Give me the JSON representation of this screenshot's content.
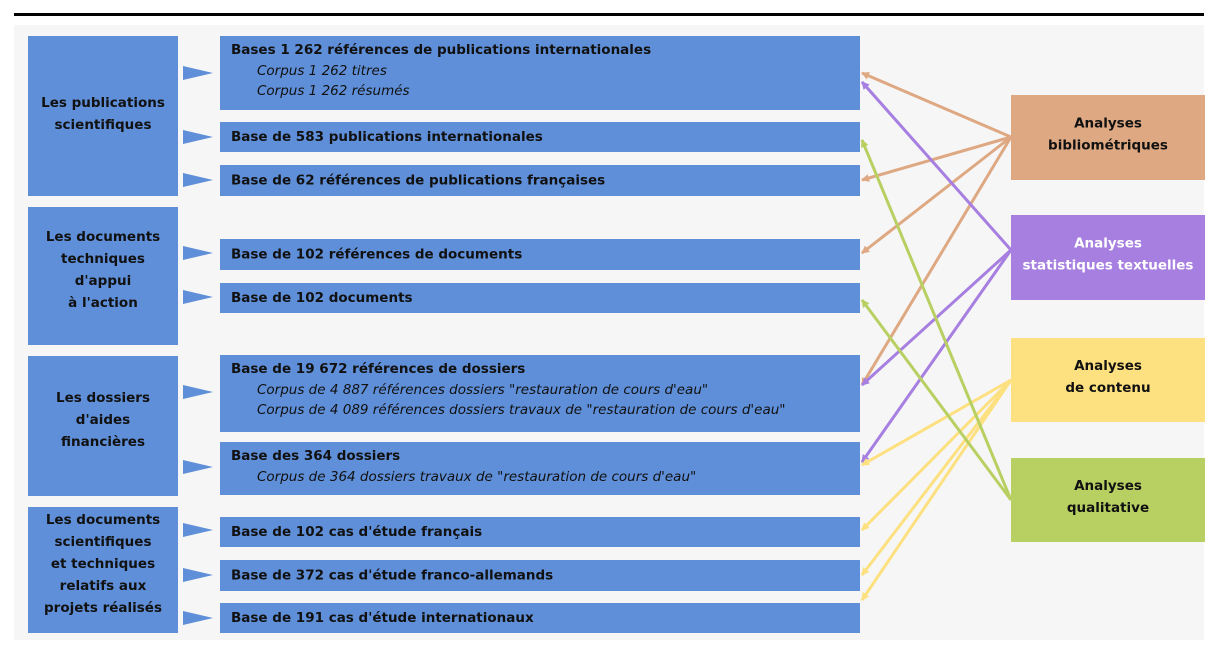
{
  "categories": [
    {
      "lines": [
        "Les publications",
        "scientifiques"
      ]
    },
    {
      "lines": [
        "Les documents",
        "techniques",
        "d'appui",
        "à l'action"
      ]
    },
    {
      "lines": [
        "Les dossiers",
        "d'aides",
        "financières"
      ]
    },
    {
      "lines": [
        "Les documents",
        "scientifiques",
        "et techniques",
        "relatifs aux",
        "projets réalisés"
      ]
    }
  ],
  "bases": [
    {
      "title": "Bases 1 262 références de publications internationales",
      "subs": [
        "Corpus 1 262 titres",
        "Corpus 1 262 résumés"
      ]
    },
    {
      "title": "Base de 583 publications internationales",
      "subs": []
    },
    {
      "title": "Base de 62 références de publications françaises",
      "subs": []
    },
    {
      "title": "Base de 102 références de documents",
      "subs": []
    },
    {
      "title": "Base de 102 documents",
      "subs": []
    },
    {
      "title": "Base de 19 672 références de dossiers",
      "subs": [
        "Corpus de 4 887 références dossiers \"restauration de cours d'eau\"",
        "Corpus de 4 089 références dossiers travaux de \"restauration de cours d'eau\""
      ]
    },
    {
      "title": "Base des 364 dossiers",
      "subs": [
        "Corpus de 364 dossiers travaux de \"restauration de cours d'eau\""
      ]
    },
    {
      "title": "Base de 102 cas d'étude français",
      "subs": []
    },
    {
      "title": "Base de 372 cas d'étude franco-allemands",
      "subs": []
    },
    {
      "title": "Base de 191 cas d'étude internationaux",
      "subs": []
    }
  ],
  "analyses": [
    {
      "lines": [
        "Analyses",
        "bibliométriques"
      ]
    },
    {
      "lines": [
        "Analyses",
        "statistiques textuelles"
      ]
    },
    {
      "lines": [
        "Analyses",
        "de contenu"
      ]
    },
    {
      "lines": [
        "Analyses",
        "qualitative"
      ]
    }
  ]
}
